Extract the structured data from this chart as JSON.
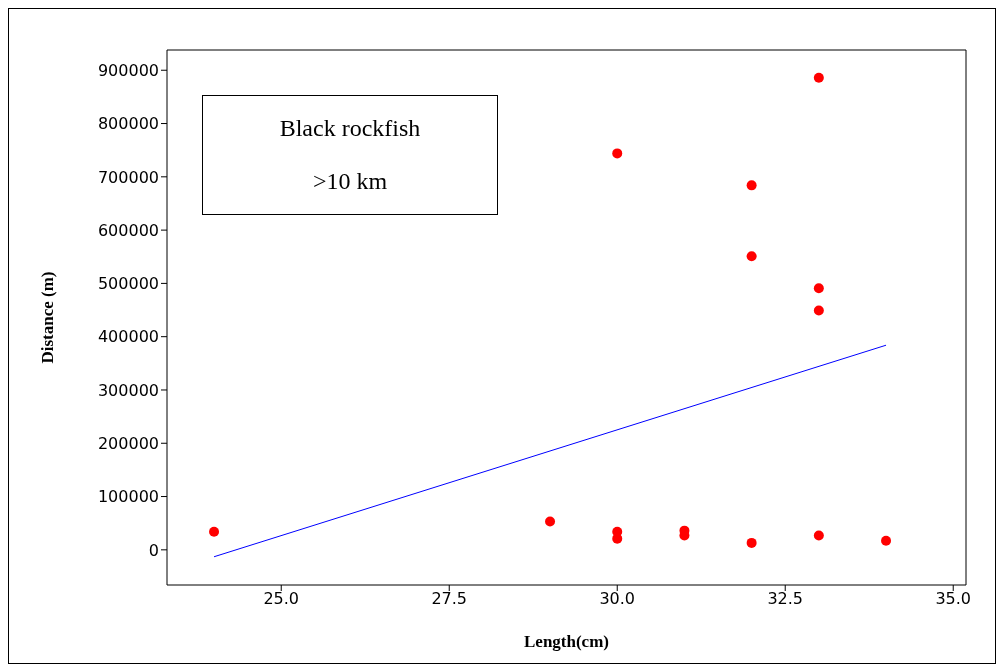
{
  "chart_data": {
    "type": "scatter",
    "xlabel": "Length(cm)",
    "ylabel": "Distance (m)",
    "annotations": [
      "Black rockfish",
      ">10 km"
    ],
    "xlim": [
      23.3,
      35.19
    ],
    "xticks": [
      {
        "value": 25,
        "label": "25.0"
      },
      {
        "value": 27.5,
        "label": "27.5"
      },
      {
        "value": 30,
        "label": "30.0"
      },
      {
        "value": 32.5,
        "label": "32.5"
      },
      {
        "value": 35,
        "label": "35.0"
      }
    ],
    "ylim": [
      -66000,
      938000
    ],
    "yticks": [
      0,
      100000,
      200000,
      300000,
      400000,
      500000,
      600000,
      700000,
      800000,
      900000
    ],
    "grid": false,
    "marker": "circle",
    "series": [
      {
        "type": "scatter",
        "color": "#ff0000",
        "x": [
          24,
          29,
          30,
          30,
          30,
          31,
          31,
          32,
          32,
          32,
          33,
          33,
          33,
          33,
          34
        ],
        "values": [
          34000,
          53000,
          744000,
          34000,
          21000,
          36000,
          27000,
          684000,
          551000,
          13000,
          886000,
          491000,
          449000,
          27000,
          17000
        ]
      },
      {
        "type": "line",
        "color": "#0000ff",
        "x": [
          24,
          34
        ],
        "values": [
          -13000,
          384000
        ],
        "marker": "none",
        "line_style": "solid"
      }
    ]
  }
}
